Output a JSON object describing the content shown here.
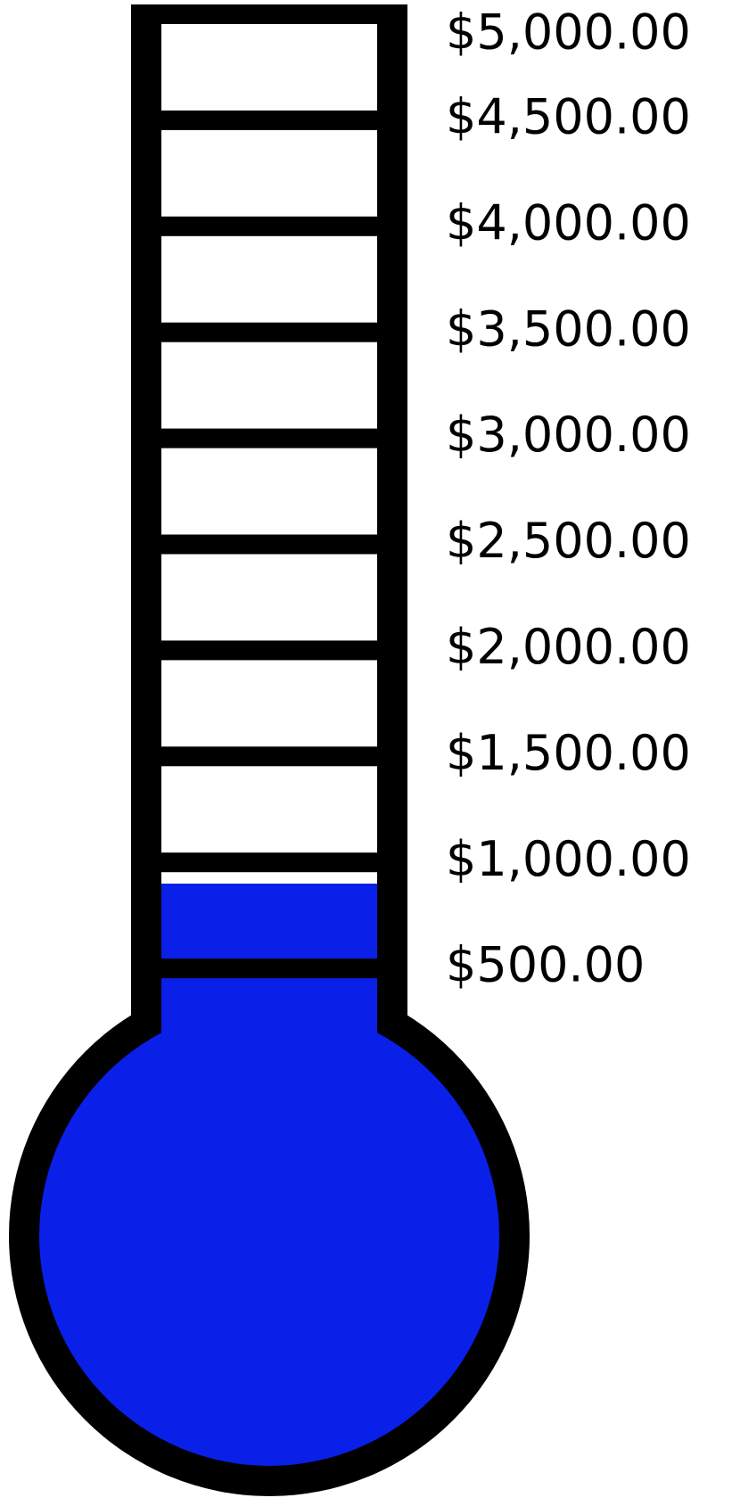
{
  "chart_data": {
    "type": "thermometer",
    "value": 900,
    "color": "#0a1fe8",
    "ylim": [
      0,
      5000
    ],
    "yticks": [
      {
        "value": 500,
        "label": "$500.00"
      },
      {
        "value": 1000,
        "label": "$1,000.00"
      },
      {
        "value": 1500,
        "label": "$1,500.00"
      },
      {
        "value": 2000,
        "label": "$2,000.00"
      },
      {
        "value": 2500,
        "label": "$2,500.00"
      },
      {
        "value": 3000,
        "label": "$3,000.00"
      },
      {
        "value": 3500,
        "label": "$3,500.00"
      },
      {
        "value": 4000,
        "label": "$4,000.00"
      },
      {
        "value": 4500,
        "label": "$4,500.00"
      },
      {
        "value": 5000,
        "label": "$5,000.00"
      }
    ]
  }
}
